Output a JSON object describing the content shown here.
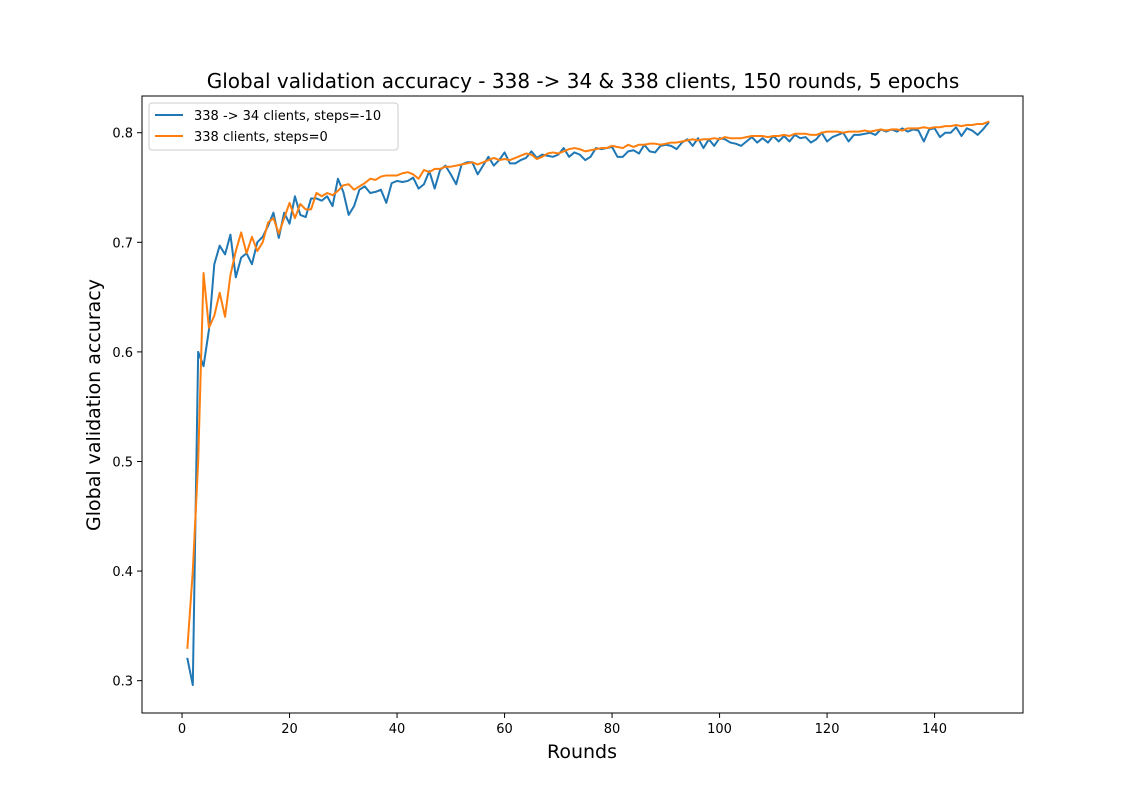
{
  "chart_data": {
    "type": "line",
    "title": "Global validation accuracy - 338 -> 34 & 338 clients, 150 rounds, 5 epochs",
    "xlabel": "Rounds",
    "ylabel": "Global validation accuracy",
    "xlim": [
      -7.45,
      156.45
    ],
    "ylim": [
      0.2705,
      0.8335
    ],
    "xticks": [
      0,
      20,
      40,
      60,
      80,
      100,
      120,
      140
    ],
    "yticks": [
      0.3,
      0.4,
      0.5,
      0.6,
      0.7,
      0.8
    ],
    "ytick_labels": [
      "0.3",
      "0.4",
      "0.5",
      "0.6",
      "0.7",
      "0.8"
    ],
    "grid": false,
    "legend_position": "upper-left",
    "series": [
      {
        "name": "338 -> 34 clients, steps=-10",
        "color": "#1f77b4",
        "x_start": 1,
        "y": [
          0.32,
          0.296,
          0.6,
          0.587,
          0.62,
          0.68,
          0.697,
          0.689,
          0.707,
          0.668,
          0.686,
          0.69,
          0.68,
          0.7,
          0.705,
          0.715,
          0.727,
          0.704,
          0.727,
          0.717,
          0.742,
          0.725,
          0.723,
          0.74,
          0.74,
          0.738,
          0.742,
          0.733,
          0.758,
          0.746,
          0.725,
          0.733,
          0.748,
          0.751,
          0.745,
          0.746,
          0.748,
          0.736,
          0.754,
          0.756,
          0.755,
          0.756,
          0.759,
          0.749,
          0.753,
          0.765,
          0.749,
          0.766,
          0.77,
          0.762,
          0.753,
          0.771,
          0.773,
          0.773,
          0.762,
          0.77,
          0.778,
          0.77,
          0.775,
          0.782,
          0.772,
          0.772,
          0.775,
          0.777,
          0.783,
          0.777,
          0.78,
          0.779,
          0.778,
          0.78,
          0.786,
          0.778,
          0.782,
          0.78,
          0.775,
          0.778,
          0.786,
          0.785,
          0.786,
          0.787,
          0.778,
          0.778,
          0.783,
          0.784,
          0.781,
          0.789,
          0.783,
          0.782,
          0.788,
          0.789,
          0.788,
          0.785,
          0.791,
          0.794,
          0.788,
          0.795,
          0.786,
          0.794,
          0.788,
          0.795,
          0.794,
          0.791,
          0.79,
          0.788,
          0.792,
          0.796,
          0.791,
          0.795,
          0.791,
          0.797,
          0.792,
          0.797,
          0.792,
          0.798,
          0.795,
          0.796,
          0.791,
          0.794,
          0.8,
          0.792,
          0.796,
          0.798,
          0.8,
          0.792,
          0.798,
          0.798,
          0.799,
          0.8,
          0.798,
          0.803,
          0.801,
          0.803,
          0.801,
          0.804,
          0.801,
          0.803,
          0.802,
          0.792,
          0.803,
          0.804,
          0.796,
          0.8,
          0.8,
          0.805,
          0.797,
          0.804,
          0.802,
          0.798,
          0.803,
          0.809
        ]
      },
      {
        "name": "338 clients, steps=0",
        "color": "#ff7f0e",
        "x_start": 1,
        "y": [
          0.33,
          0.4,
          0.5,
          0.672,
          0.622,
          0.633,
          0.654,
          0.632,
          0.67,
          0.692,
          0.709,
          0.69,
          0.705,
          0.692,
          0.7,
          0.718,
          0.722,
          0.708,
          0.722,
          0.736,
          0.722,
          0.735,
          0.73,
          0.73,
          0.745,
          0.742,
          0.745,
          0.743,
          0.747,
          0.752,
          0.753,
          0.748,
          0.751,
          0.754,
          0.758,
          0.757,
          0.76,
          0.761,
          0.761,
          0.761,
          0.763,
          0.764,
          0.762,
          0.758,
          0.766,
          0.764,
          0.767,
          0.767,
          0.769,
          0.769,
          0.77,
          0.771,
          0.772,
          0.773,
          0.771,
          0.773,
          0.775,
          0.777,
          0.775,
          0.776,
          0.775,
          0.777,
          0.779,
          0.781,
          0.78,
          0.776,
          0.778,
          0.781,
          0.782,
          0.781,
          0.783,
          0.785,
          0.786,
          0.785,
          0.783,
          0.784,
          0.785,
          0.786,
          0.786,
          0.788,
          0.787,
          0.786,
          0.789,
          0.787,
          0.789,
          0.789,
          0.79,
          0.79,
          0.789,
          0.79,
          0.791,
          0.791,
          0.792,
          0.793,
          0.794,
          0.793,
          0.794,
          0.794,
          0.795,
          0.794,
          0.796,
          0.795,
          0.795,
          0.795,
          0.796,
          0.797,
          0.797,
          0.797,
          0.796,
          0.797,
          0.797,
          0.798,
          0.797,
          0.799,
          0.799,
          0.799,
          0.798,
          0.798,
          0.8,
          0.801,
          0.801,
          0.801,
          0.8,
          0.801,
          0.801,
          0.801,
          0.802,
          0.801,
          0.802,
          0.803,
          0.802,
          0.803,
          0.803,
          0.802,
          0.804,
          0.804,
          0.804,
          0.805,
          0.804,
          0.805,
          0.805,
          0.806,
          0.806,
          0.807,
          0.806,
          0.807,
          0.807,
          0.808,
          0.808,
          0.81
        ]
      }
    ]
  }
}
